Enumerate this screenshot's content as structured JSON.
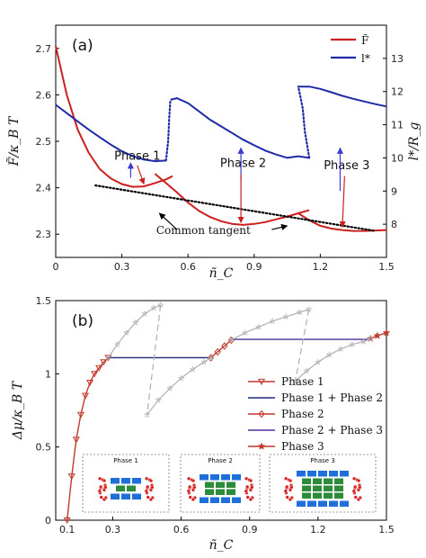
{
  "chart_data": [
    {
      "panel": "(a)",
      "type": "line",
      "xlabel": "ñ_C",
      "ylabel_left": "F̃/κ_B T",
      "ylabel_right": "l*/R_g",
      "xlim": [
        0,
        1.5
      ],
      "ylim_left": [
        2.25,
        2.75
      ],
      "ylim_right": [
        7,
        14
      ],
      "xticks": [
        "0",
        "0.3",
        "0.6",
        "0.9",
        "1.2",
        "1.5"
      ],
      "yticks_left": [
        "2.3",
        "2.4",
        "2.5",
        "2.6",
        "2.7"
      ],
      "yticks_right": [
        "8",
        "9",
        "10",
        "11",
        "12",
        "13"
      ],
      "legend": [
        "F̃",
        "l*"
      ],
      "colors": {
        "free_energy": "#cc1f1f",
        "l_star": "#1f2aa8",
        "tangent": "#000000",
        "annot_red": "#cc1f1f",
        "annot_blue": "#3a3ad0"
      },
      "series": [
        {
          "name": "F̃",
          "axis": "left",
          "segments": [
            {
              "x": [
                0.0,
                0.05,
                0.1,
                0.15,
                0.2,
                0.25,
                0.3,
                0.35,
                0.4,
                0.45,
                0.5,
                0.53
              ],
              "y": [
                2.705,
                2.6,
                2.525,
                2.475,
                2.44,
                2.42,
                2.408,
                2.402,
                2.403,
                2.41,
                2.418,
                2.425
              ]
            },
            {
              "x": [
                0.45,
                0.5,
                0.55,
                0.6,
                0.65,
                0.7,
                0.75,
                0.8,
                0.85,
                0.9,
                0.95,
                1.0,
                1.05,
                1.1,
                1.15
              ],
              "y": [
                2.43,
                2.41,
                2.39,
                2.368,
                2.35,
                2.337,
                2.328,
                2.322,
                2.32,
                2.322,
                2.326,
                2.332,
                2.338,
                2.345,
                2.352
              ]
            },
            {
              "x": [
                1.1,
                1.15,
                1.2,
                1.25,
                1.3,
                1.35,
                1.4,
                1.45,
                1.5
              ],
              "y": [
                2.345,
                2.33,
                2.318,
                2.312,
                2.309,
                2.307,
                2.307,
                2.308,
                2.309
              ]
            }
          ]
        },
        {
          "name": "l*",
          "axis": "right",
          "segments": [
            {
              "x": [
                0.0,
                0.05,
                0.1,
                0.15,
                0.2,
                0.25,
                0.3,
                0.35,
                0.4,
                0.45,
                0.5
              ],
              "y": [
                11.6,
                11.35,
                11.1,
                10.85,
                10.62,
                10.4,
                10.2,
                10.05,
                9.95,
                9.9,
                9.92
              ]
            },
            {
              "x": [
                0.52,
                0.55,
                0.6,
                0.65,
                0.7,
                0.75,
                0.8,
                0.85,
                0.9,
                0.95,
                1.0,
                1.05,
                1.1,
                1.15
              ],
              "y": [
                11.75,
                11.8,
                11.65,
                11.4,
                11.15,
                10.95,
                10.75,
                10.55,
                10.38,
                10.22,
                10.1,
                10.0,
                10.05,
                10.0
              ]
            },
            {
              "x": [
                1.1,
                1.15,
                1.2,
                1.25,
                1.3,
                1.35,
                1.4,
                1.45,
                1.5
              ],
              "y": [
                12.15,
                12.15,
                12.08,
                11.98,
                11.87,
                11.78,
                11.7,
                11.62,
                11.55
              ]
            }
          ]
        },
        {
          "name": "l* transition",
          "axis": "right",
          "dotted": true,
          "segments": [
            {
              "x": [
                0.5,
                0.51,
                0.515,
                0.52
              ],
              "y": [
                9.92,
                10.5,
                11.2,
                11.75
              ]
            },
            {
              "x": [
                1.15,
                1.13,
                1.12,
                1.1
              ],
              "y": [
                10.0,
                10.8,
                11.5,
                12.15
              ]
            }
          ]
        },
        {
          "name": "Common tangent",
          "axis": "left",
          "dotted": true,
          "segments": [
            {
              "x": [
                0.18,
                1.45
              ],
              "y": [
                2.405,
                2.307
              ]
            }
          ]
        }
      ],
      "annotations": [
        {
          "text": "Phase 1",
          "x": 0.37,
          "y": 2.46
        },
        {
          "text": "Phase 2",
          "x": 0.85,
          "y": 2.445
        },
        {
          "text": "Phase 3",
          "x": 1.32,
          "y": 2.44
        },
        {
          "text": "Common tangent",
          "x": 0.67,
          "y": 2.3
        }
      ]
    },
    {
      "panel": "(b)",
      "type": "line",
      "xlabel": "ñ_C",
      "ylabel": "Δμ/κ_B T",
      "xlim": [
        0.05,
        1.5
      ],
      "ylim": [
        0,
        1.5
      ],
      "xticks": [
        "0.1",
        "0.3",
        "0.6",
        "0.9",
        "1.2",
        "1.5"
      ],
      "yticks": [
        "0",
        "0.5",
        "1",
        "1.5"
      ],
      "legend": [
        "Phase 1",
        "Phase 1 + Phase 2",
        "Phase 2",
        "Phase 2 + Phase 3",
        "Phase 3"
      ],
      "colors": {
        "phase1": "#c0392b",
        "phase12": "#1f2a7a",
        "phase2": "#c0392b",
        "phase23": "#4a2f9a",
        "phase3": "#c0392b",
        "gray": "#b0b0b0"
      },
      "series": [
        {
          "name": "Phase 1",
          "x": [
            0.1,
            0.12,
            0.14,
            0.16,
            0.18,
            0.2,
            0.22,
            0.24,
            0.26,
            0.28
          ],
          "y": [
            0.0,
            0.3,
            0.55,
            0.72,
            0.85,
            0.94,
            1.0,
            1.04,
            1.08,
            1.11
          ]
        },
        {
          "name": "Phase 1 + Phase 2",
          "x": [
            0.28,
            0.73
          ],
          "y": [
            1.11,
            1.11
          ]
        },
        {
          "name": "Phase 2",
          "x": [
            0.73,
            0.76,
            0.79,
            0.82
          ],
          "y": [
            1.11,
            1.15,
            1.19,
            1.23
          ]
        },
        {
          "name": "Phase 2 + Phase 3",
          "x": [
            0.82,
            1.43
          ],
          "y": [
            1.235,
            1.235
          ]
        },
        {
          "name": "Phase 3",
          "x": [
            1.43,
            1.46,
            1.5
          ],
          "y": [
            1.24,
            1.26,
            1.28
          ]
        },
        {
          "name": "Phase 1 metastable",
          "gray": true,
          "x": [
            0.28,
            0.32,
            0.36,
            0.4,
            0.44,
            0.48,
            0.51
          ],
          "y": [
            1.11,
            1.2,
            1.28,
            1.35,
            1.41,
            1.45,
            1.47
          ]
        },
        {
          "name": "Phase 2 metastable",
          "gray": true,
          "x": [
            0.45,
            0.5,
            0.55,
            0.6,
            0.65,
            0.7,
            0.73
          ],
          "y": [
            0.72,
            0.82,
            0.9,
            0.97,
            1.03,
            1.08,
            1.11
          ]
        },
        {
          "name": "Phase 2 metastable upper",
          "gray": true,
          "x": [
            0.82,
            0.88,
            0.94,
            1.0,
            1.06,
            1.12,
            1.16
          ],
          "y": [
            1.23,
            1.28,
            1.32,
            1.36,
            1.39,
            1.42,
            1.44
          ]
        },
        {
          "name": "Phase 3 metastable",
          "gray": true,
          "x": [
            1.1,
            1.15,
            1.2,
            1.25,
            1.3,
            1.35,
            1.4,
            1.43
          ],
          "y": [
            0.95,
            1.02,
            1.08,
            1.13,
            1.17,
            1.2,
            1.22,
            1.24
          ]
        },
        {
          "name": "spinodal 1",
          "gray": true,
          "dashed": true,
          "x": [
            0.51,
            0.45
          ],
          "y": [
            1.47,
            0.72
          ]
        },
        {
          "name": "spinodal 2",
          "gray": true,
          "dashed": true,
          "x": [
            1.16,
            1.1
          ],
          "y": [
            1.44,
            0.95
          ]
        }
      ],
      "insets": [
        {
          "label": "Phase 1",
          "rows": 1,
          "cols": 2
        },
        {
          "label": "Phase 2",
          "rows": 2,
          "cols": 3
        },
        {
          "label": "Phase 3",
          "rows": 3,
          "cols": 4
        }
      ]
    }
  ]
}
